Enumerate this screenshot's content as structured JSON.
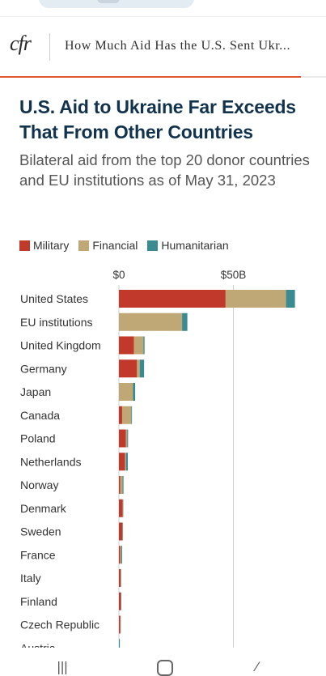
{
  "header": {
    "logo_text": "cfr",
    "article_title": "How Much Aid Has the U.S. Sent Ukr..."
  },
  "chart": {
    "title": "U.S. Aid to Ukraine Far Exceeds That From Other Countries",
    "subtitle": "Bilateral aid from the top 20 donor countries and EU institutions as of May 31, 2023",
    "colors": {
      "military": "#c0392b",
      "financial": "#bfa776",
      "humanitarian": "#3a8a91",
      "gridline": "#cfcfcf"
    },
    "legend": [
      "Military",
      "Financial",
      "Humanitarian"
    ]
  },
  "chart_data": {
    "type": "bar",
    "orientation": "horizontal",
    "stacked": true,
    "unit": "$B",
    "title": "U.S. Aid to Ukraine Far Exceeds That From Other Countries",
    "subtitle": "Bilateral aid from the top 20 donor countries and EU institutions as of May 31, 2023",
    "xlabel": "",
    "ylabel": "",
    "xlim": [
      0,
      78
    ],
    "x_ticks": [
      {
        "value": 0,
        "label": "$0"
      },
      {
        "value": 50,
        "label": "$50B"
      }
    ],
    "categories": [
      "United States",
      "EU institutions",
      "United Kingdom",
      "Germany",
      "Japan",
      "Canada",
      "Poland",
      "Netherlands",
      "Norway",
      "Denmark",
      "Sweden",
      "France",
      "Italy",
      "Finland",
      "Czech Republic",
      "Austria"
    ],
    "series": [
      {
        "name": "Military",
        "values": [
          46.6,
          0.0,
          6.6,
          7.9,
          0.0,
          1.4,
          3.0,
          2.7,
          0.6,
          1.6,
          1.5,
          0.6,
          0.7,
          0.9,
          0.6,
          0.0
        ]
      },
      {
        "name": "Financial",
        "values": [
          26.4,
          27.6,
          4.1,
          1.2,
          6.1,
          4.0,
          0.6,
          0.4,
          1.0,
          0.1,
          0.1,
          0.4,
          0.2,
          0.0,
          0.1,
          0.0
        ]
      },
      {
        "name": "Humanitarian",
        "values": [
          3.9,
          2.3,
          0.5,
          1.9,
          1.0,
          0.3,
          0.4,
          0.8,
          0.4,
          0.2,
          0.2,
          0.4,
          0.1,
          0.1,
          0.1,
          0.4
        ]
      }
    ],
    "legend_position": "top-left",
    "grid": true
  },
  "nav": {
    "recent_icon": "recent-apps-icon",
    "home_icon": "home-icon",
    "back_icon": "back-icon"
  }
}
